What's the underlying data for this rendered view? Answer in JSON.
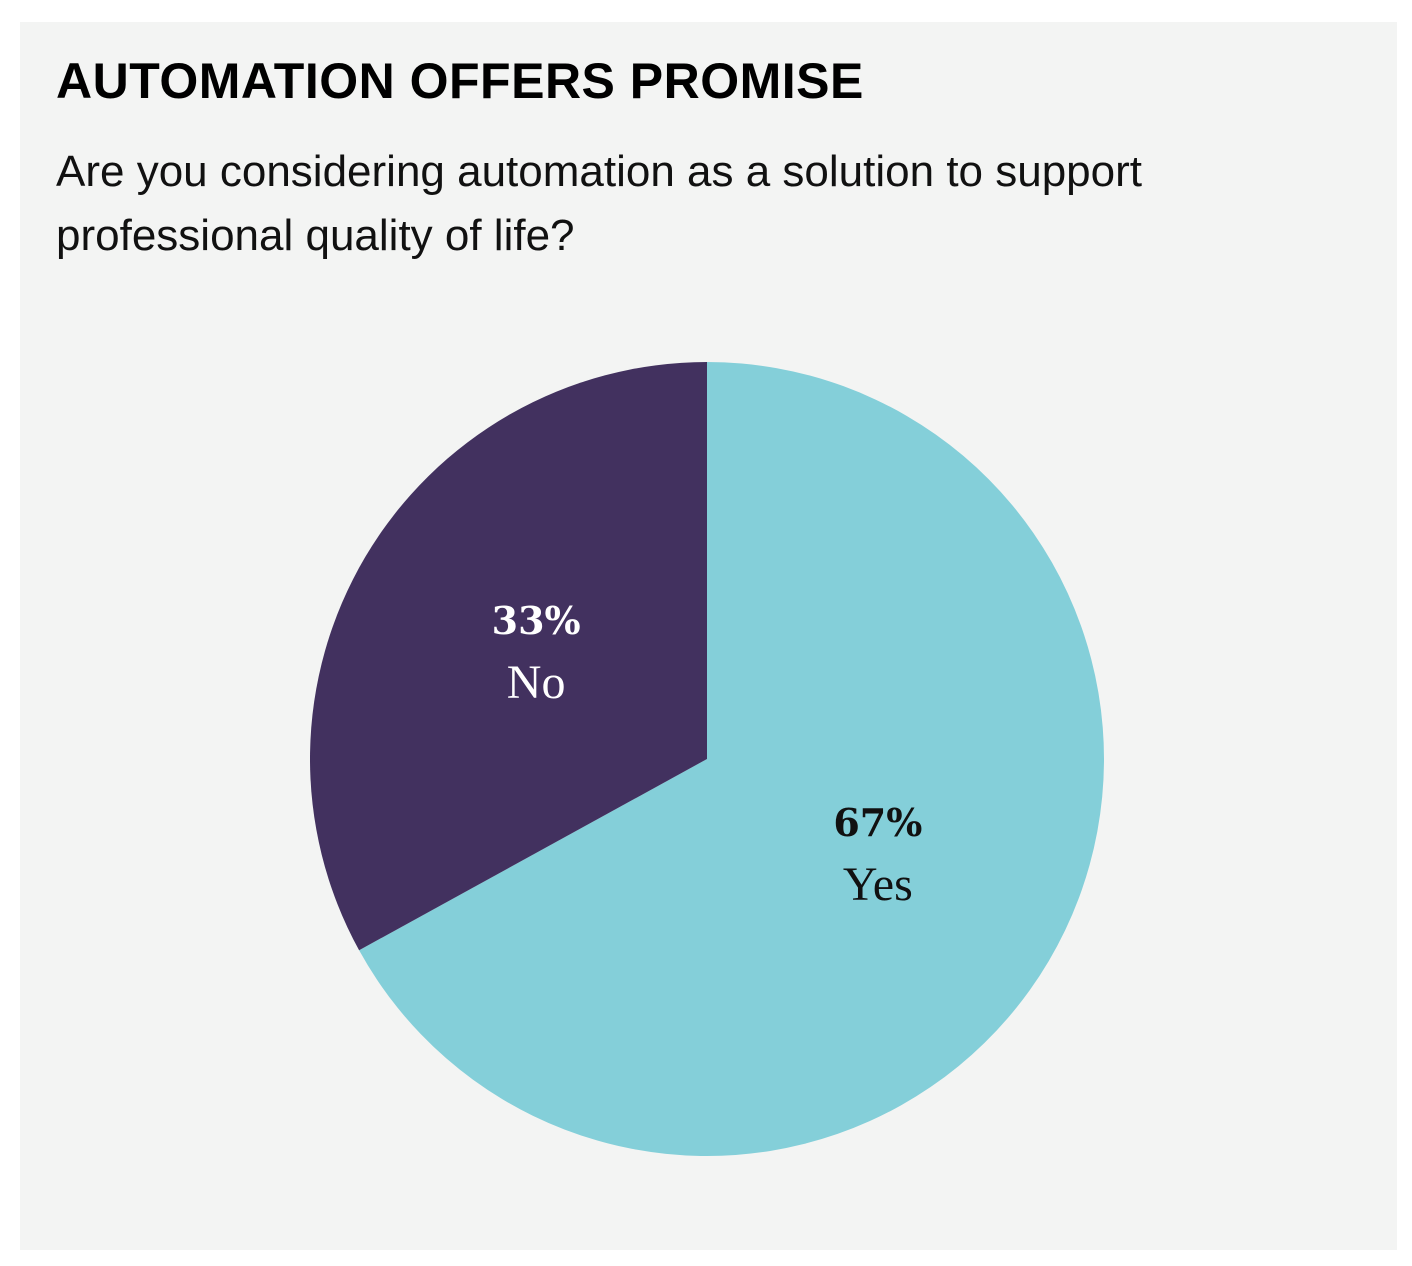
{
  "title": "AUTOMATION OFFERS PROMISE",
  "subtitle": "Are you considering automation as a solution to support professional quality of life?",
  "colors": {
    "background": "#f3f4f3",
    "yes": "#84cfd9",
    "no": "#42315f",
    "yes_text": "#111111",
    "no_text": "#ffffff"
  },
  "chart_data": {
    "type": "pie",
    "slices": [
      {
        "label": "Yes",
        "value": 67,
        "value_label": "67%"
      },
      {
        "label": "No",
        "value": 33,
        "value_label": "33%"
      }
    ]
  }
}
